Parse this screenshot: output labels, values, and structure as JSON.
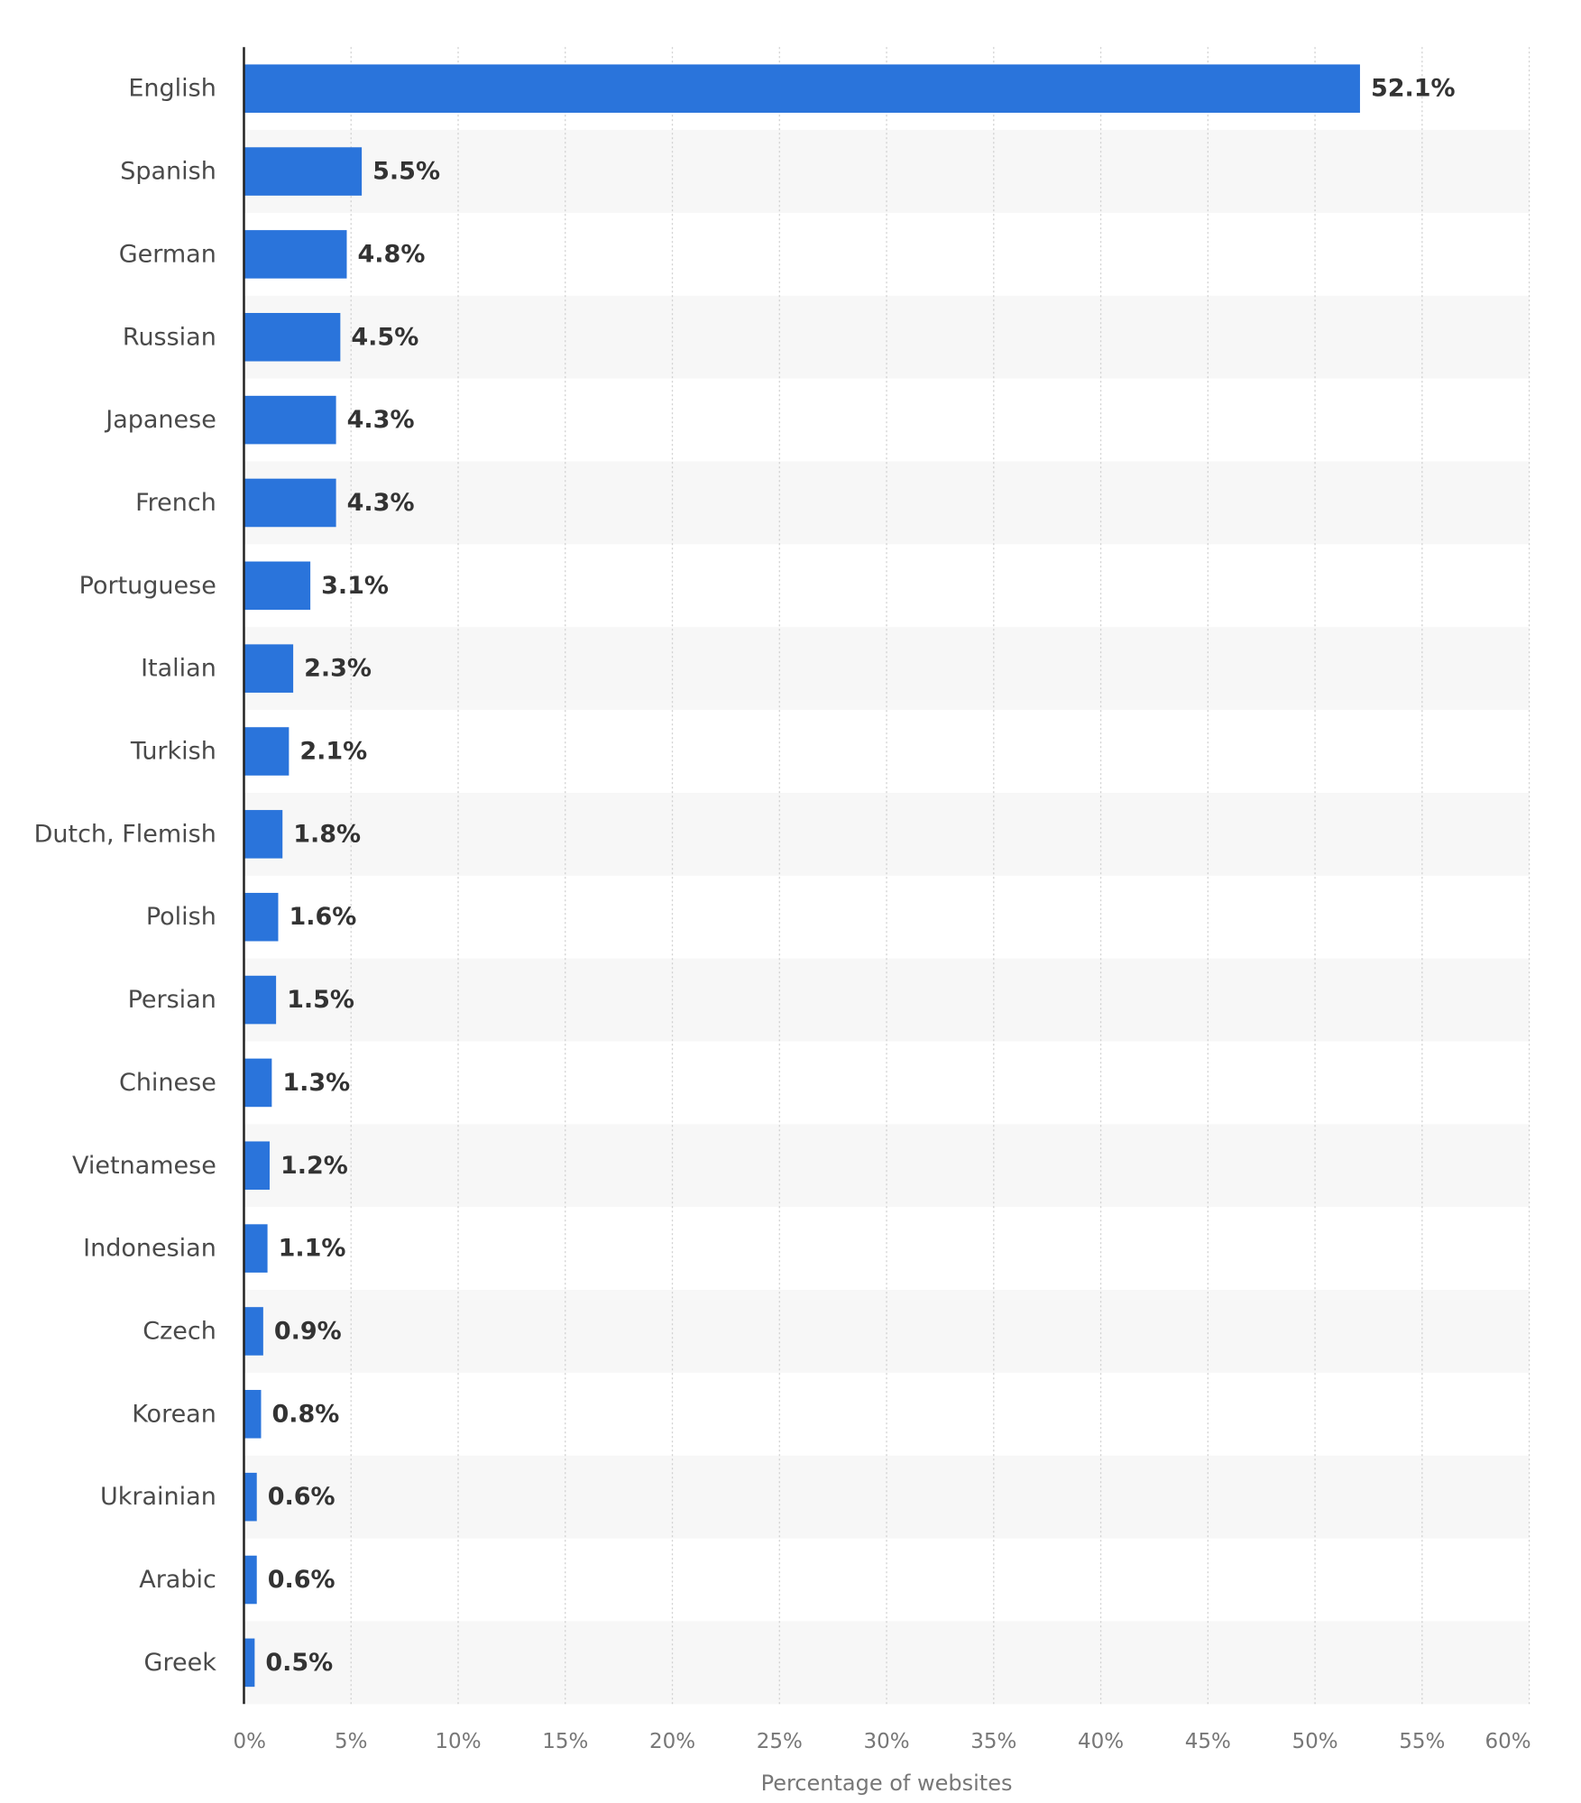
{
  "chart_data": {
    "type": "bar",
    "orientation": "horizontal",
    "categories": [
      "English",
      "Spanish",
      "German",
      "Russian",
      "Japanese",
      "French",
      "Portuguese",
      "Italian",
      "Turkish",
      "Dutch, Flemish",
      "Polish",
      "Persian",
      "Chinese",
      "Vietnamese",
      "Indonesian",
      "Czech",
      "Korean",
      "Ukrainian",
      "Arabic",
      "Greek"
    ],
    "values": [
      52.1,
      5.5,
      4.8,
      4.5,
      4.3,
      4.3,
      3.1,
      2.3,
      2.1,
      1.8,
      1.6,
      1.5,
      1.3,
      1.2,
      1.1,
      0.9,
      0.8,
      0.6,
      0.6,
      0.5
    ],
    "value_labels": [
      "52.1%",
      "5.5%",
      "4.8%",
      "4.5%",
      "4.3%",
      "4.3%",
      "3.1%",
      "2.3%",
      "2.1%",
      "1.8%",
      "1.6%",
      "1.5%",
      "1.3%",
      "1.2%",
      "1.1%",
      "0.9%",
      "0.8%",
      "0.6%",
      "0.6%",
      "0.5%"
    ],
    "xticks": [
      "0%",
      "5%",
      "10%",
      "15%",
      "20%",
      "25%",
      "30%",
      "35%",
      "40%",
      "45%",
      "50%",
      "55%",
      "60%"
    ],
    "xlim": [
      0,
      60
    ],
    "xlabel": "Percentage of websites",
    "ylabel": "",
    "title": "",
    "grid": "vertical dashed",
    "bar_color": "#2a74db",
    "stripe_color": "#f7f7f7"
  }
}
